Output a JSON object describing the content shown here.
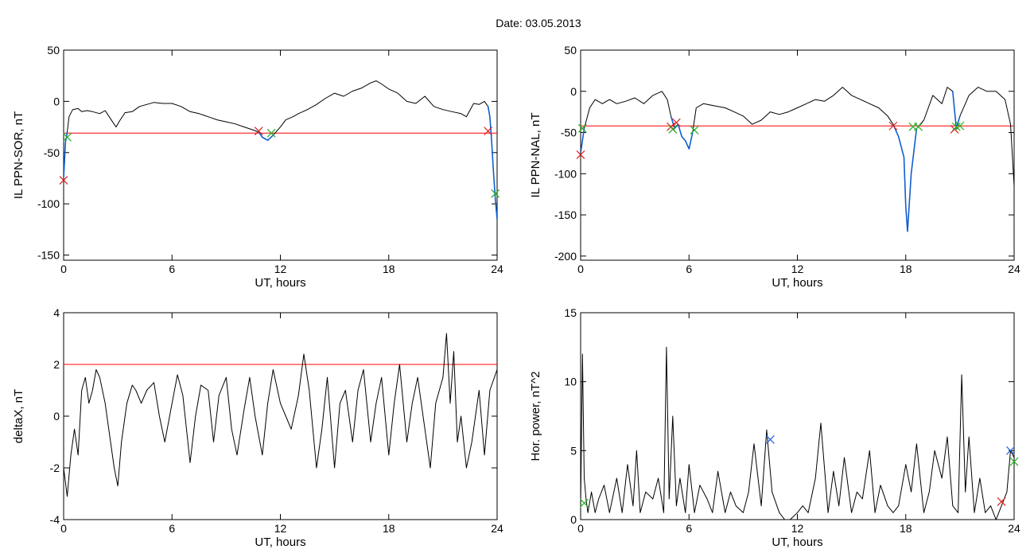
{
  "figure": {
    "title": "Date:  03.05.2013"
  },
  "colors": {
    "series": "#000000",
    "segment": "#1060d0",
    "threshold": "#ff0000",
    "marker_red": "#dd2020",
    "marker_green": "#20b020",
    "marker_blue": "#2060e0"
  },
  "chart_data": [
    {
      "type": "line",
      "title": "",
      "xlabel": "UT, hours",
      "ylabel": "IL PPN-SOR, nT",
      "xlim": [
        0,
        24
      ],
      "ylim": [
        -155,
        50
      ],
      "xticks": [
        0,
        6,
        12,
        18,
        24
      ],
      "yticks": [
        50,
        0,
        -50,
        -100,
        -150
      ],
      "threshold": -31,
      "series": [
        {
          "role": "main",
          "x": [
            0,
            0.1,
            0.2,
            0.3,
            0.5,
            0.8,
            1.0,
            1.3,
            1.6,
            2.0,
            2.3,
            2.6,
            2.9,
            3.1,
            3.4,
            3.8,
            4.2,
            4.6,
            5.0,
            5.5,
            6.0,
            6.5,
            7.0,
            7.5,
            8.0,
            8.5,
            9.0,
            9.5,
            10.0,
            10.5,
            10.8,
            11.0,
            11.3,
            11.6,
            12.0,
            12.3,
            12.7,
            13.0,
            13.5,
            14.0,
            14.5,
            15.0,
            15.5,
            16.0,
            16.5,
            17.0,
            17.3,
            17.6,
            18.0,
            18.5,
            19.0,
            19.5,
            20.0,
            20.5,
            21.0,
            21.5,
            22.0,
            22.3,
            22.7,
            23.0,
            23.3,
            23.5,
            23.6,
            23.7,
            23.8,
            23.9,
            24.0
          ],
          "y": [
            -75,
            -40,
            -30,
            -15,
            -8,
            -7,
            -10,
            -9,
            -10,
            -12,
            -9,
            -17,
            -25,
            -19,
            -11,
            -10,
            -5,
            -3,
            -1,
            -2,
            -2,
            -5,
            -10,
            -12,
            -15,
            -18,
            -20,
            -22,
            -25,
            -28,
            -30,
            -35,
            -38,
            -33,
            -25,
            -18,
            -15,
            -12,
            -8,
            -3,
            3,
            8,
            5,
            10,
            13,
            18,
            20,
            17,
            12,
            8,
            0,
            -2,
            5,
            -5,
            -8,
            -10,
            -12,
            -15,
            -2,
            -3,
            0,
            -5,
            -15,
            -40,
            -70,
            -95,
            -115
          ]
        },
        {
          "role": "segment",
          "x": [
            10.8,
            11.0,
            11.3,
            11.6
          ],
          "y": [
            -30,
            -35,
            -38,
            -33
          ]
        },
        {
          "role": "segment",
          "x": [
            23.5,
            23.6,
            23.7,
            23.8,
            23.9,
            24.0
          ],
          "y": [
            -5,
            -15,
            -40,
            -70,
            -95,
            -115
          ]
        },
        {
          "role": "segment",
          "x": [
            0,
            0.1,
            0.2
          ],
          "y": [
            -75,
            -40,
            -30
          ]
        }
      ],
      "markers": [
        {
          "x": 0.0,
          "y": -77,
          "color": "red"
        },
        {
          "x": 0.2,
          "y": -35,
          "color": "green"
        },
        {
          "x": 10.8,
          "y": -29,
          "color": "red"
        },
        {
          "x": 11.5,
          "y": -31,
          "color": "green"
        },
        {
          "x": 23.5,
          "y": -29,
          "color": "red"
        },
        {
          "x": 23.9,
          "y": -90,
          "color": "green"
        }
      ]
    },
    {
      "type": "line",
      "title": "",
      "xlabel": "UT, hours",
      "ylabel": "IL PPN-NAL, nT",
      "xlim": [
        0,
        24
      ],
      "ylim": [
        -205,
        50
      ],
      "xticks": [
        0,
        6,
        12,
        18,
        24
      ],
      "yticks": [
        50,
        0,
        -50,
        -100,
        -150,
        -200
      ],
      "threshold": -42,
      "series": [
        {
          "role": "main",
          "x": [
            0,
            0.2,
            0.5,
            0.8,
            1.2,
            1.6,
            2.0,
            2.5,
            3.0,
            3.5,
            4.0,
            4.5,
            4.8,
            5.0,
            5.2,
            5.4,
            5.6,
            5.8,
            6.0,
            6.2,
            6.4,
            6.8,
            7.5,
            8.0,
            8.5,
            9.0,
            9.5,
            10.0,
            10.5,
            11.0,
            11.5,
            12.0,
            12.5,
            13.0,
            13.5,
            14.0,
            14.5,
            15.0,
            15.5,
            16.0,
            16.5,
            17.0,
            17.3,
            17.6,
            17.9,
            18.0,
            18.1,
            18.3,
            18.6,
            19.0,
            19.5,
            20.0,
            20.3,
            20.6,
            20.8,
            21.0,
            21.5,
            22.0,
            22.5,
            23.0,
            23.5,
            23.8,
            24.0
          ],
          "y": [
            -75,
            -45,
            -20,
            -10,
            -15,
            -10,
            -15,
            -12,
            -8,
            -15,
            -5,
            0,
            -10,
            -30,
            -45,
            -40,
            -55,
            -60,
            -70,
            -50,
            -20,
            -15,
            -18,
            -20,
            -25,
            -30,
            -40,
            -35,
            -25,
            -28,
            -25,
            -20,
            -15,
            -10,
            -12,
            -5,
            5,
            -5,
            -10,
            -15,
            -20,
            -30,
            -40,
            -55,
            -80,
            -140,
            -170,
            -100,
            -45,
            -35,
            -5,
            -15,
            5,
            0,
            -45,
            -30,
            -5,
            5,
            0,
            0,
            -10,
            -40,
            -115
          ]
        },
        {
          "role": "segment",
          "x": [
            5.0,
            5.2,
            5.4,
            5.6,
            5.8,
            6.0,
            6.2
          ],
          "y": [
            -30,
            -45,
            -40,
            -55,
            -60,
            -70,
            -50
          ]
        },
        {
          "role": "segment",
          "x": [
            17.3,
            17.6,
            17.9,
            18.0,
            18.1,
            18.3,
            18.6
          ],
          "y": [
            -40,
            -55,
            -80,
            -140,
            -170,
            -100,
            -45
          ]
        },
        {
          "role": "segment",
          "x": [
            20.6,
            20.8,
            21.0
          ],
          "y": [
            0,
            -45,
            -30
          ]
        },
        {
          "role": "segment",
          "x": [
            0,
            0.2
          ],
          "y": [
            -75,
            -45
          ]
        }
      ],
      "markers": [
        {
          "x": 0.0,
          "y": -77,
          "color": "red"
        },
        {
          "x": 0.1,
          "y": -45,
          "color": "green"
        },
        {
          "x": 5.0,
          "y": -43,
          "color": "red"
        },
        {
          "x": 5.3,
          "y": -38,
          "color": "red"
        },
        {
          "x": 5.1,
          "y": -46,
          "color": "green"
        },
        {
          "x": 6.3,
          "y": -47,
          "color": "green"
        },
        {
          "x": 17.3,
          "y": -42,
          "color": "red"
        },
        {
          "x": 18.4,
          "y": -43,
          "color": "green"
        },
        {
          "x": 18.7,
          "y": -43,
          "color": "green"
        },
        {
          "x": 20.7,
          "y": -46,
          "color": "red"
        },
        {
          "x": 20.8,
          "y": -43,
          "color": "green"
        },
        {
          "x": 21.0,
          "y": -42,
          "color": "green"
        }
      ]
    },
    {
      "type": "line",
      "title": "",
      "xlabel": "UT, hours",
      "ylabel": "deltaX, nT",
      "xlim": [
        0,
        24
      ],
      "ylim": [
        -4,
        4
      ],
      "xticks": [
        0,
        6,
        12,
        18,
        24
      ],
      "yticks": [
        4,
        2,
        0,
        -2,
        -4
      ],
      "threshold": 2,
      "series": [
        {
          "role": "main",
          "x": [
            0,
            0.2,
            0.4,
            0.6,
            0.8,
            1.0,
            1.2,
            1.4,
            1.6,
            1.8,
            2.0,
            2.3,
            2.6,
            2.8,
            3.0,
            3.2,
            3.5,
            3.8,
            4.0,
            4.3,
            4.6,
            5.0,
            5.3,
            5.6,
            6.0,
            6.3,
            6.6,
            7.0,
            7.3,
            7.6,
            8.0,
            8.3,
            8.6,
            9.0,
            9.3,
            9.6,
            10.0,
            10.3,
            10.6,
            11.0,
            11.3,
            11.6,
            12.0,
            12.3,
            12.6,
            13.0,
            13.3,
            13.6,
            14.0,
            14.3,
            14.6,
            15.0,
            15.3,
            15.6,
            16.0,
            16.3,
            16.6,
            17.0,
            17.3,
            17.6,
            18.0,
            18.3,
            18.6,
            19.0,
            19.3,
            19.6,
            20.0,
            20.3,
            20.6,
            21.0,
            21.2,
            21.4,
            21.6,
            21.8,
            22.0,
            22.3,
            22.6,
            23.0,
            23.3,
            23.6,
            24.0
          ],
          "y": [
            -2.0,
            -3.1,
            -1.5,
            -0.5,
            -1.5,
            1.0,
            1.5,
            0.5,
            1.0,
            1.8,
            1.5,
            0.5,
            -1.0,
            -2.0,
            -2.7,
            -1.0,
            0.5,
            1.2,
            1.0,
            0.5,
            1.0,
            1.3,
            0.0,
            -1.0,
            0.5,
            1.6,
            0.8,
            -1.8,
            0.0,
            1.2,
            1.0,
            -1.0,
            0.8,
            1.5,
            -0.5,
            -1.5,
            0.3,
            1.5,
            0.0,
            -1.5,
            0.5,
            1.8,
            0.5,
            0.0,
            -0.5,
            0.8,
            2.4,
            1.0,
            -2.0,
            -0.5,
            1.5,
            -2.0,
            0.5,
            1.0,
            -1.0,
            1.0,
            1.8,
            -1.0,
            0.5,
            1.5,
            -1.5,
            0.5,
            2.0,
            -1.0,
            0.5,
            1.5,
            -0.5,
            -2.0,
            0.5,
            1.5,
            3.2,
            0.5,
            2.5,
            -1.0,
            0.0,
            -2.0,
            -1.0,
            1.0,
            -1.5,
            1.0,
            1.8
          ]
        }
      ],
      "markers": []
    },
    {
      "type": "line",
      "title": "",
      "xlabel": "UT, hours",
      "ylabel": "Hor. power, nT^2",
      "xlim": [
        0,
        24
      ],
      "ylim": [
        0,
        15
      ],
      "xticks": [
        0,
        6,
        12,
        18,
        24
      ],
      "yticks": [
        15,
        10,
        5,
        0
      ],
      "series": [
        {
          "role": "main",
          "x": [
            0,
            0.1,
            0.2,
            0.3,
            0.4,
            0.6,
            0.8,
            1.0,
            1.3,
            1.6,
            2.0,
            2.3,
            2.6,
            2.9,
            3.1,
            3.3,
            3.6,
            4.0,
            4.3,
            4.6,
            4.75,
            4.9,
            5.1,
            5.3,
            5.5,
            5.8,
            6.0,
            6.3,
            6.6,
            7.0,
            7.3,
            7.6,
            8.0,
            8.3,
            8.6,
            9.0,
            9.3,
            9.6,
            10.0,
            10.3,
            10.6,
            11.0,
            11.3,
            11.6,
            12.0,
            12.3,
            12.6,
            13.0,
            13.3,
            13.7,
            14.0,
            14.3,
            14.6,
            15.0,
            15.3,
            15.6,
            16.0,
            16.3,
            16.6,
            17.0,
            17.3,
            17.6,
            18.0,
            18.3,
            18.6,
            19.0,
            19.3,
            19.6,
            20.0,
            20.3,
            20.6,
            20.9,
            21.1,
            21.3,
            21.5,
            21.8,
            22.1,
            22.4,
            22.7,
            23.0,
            23.3,
            23.6,
            23.8,
            24.0
          ],
          "y": [
            1.0,
            12.0,
            3.0,
            1.5,
            0.5,
            2.0,
            0.5,
            1.5,
            2.5,
            0.5,
            3.0,
            0.5,
            4.0,
            1.0,
            5.0,
            0.5,
            2.0,
            1.5,
            3.0,
            0.5,
            12.5,
            1.5,
            7.5,
            1.0,
            3.0,
            0.5,
            4.0,
            0.5,
            2.5,
            1.5,
            0.5,
            3.5,
            0.5,
            2.0,
            1.0,
            0.5,
            2.0,
            5.5,
            1.0,
            6.5,
            2.0,
            0.5,
            0.0,
            0.0,
            0.5,
            1.0,
            0.5,
            3.0,
            7.0,
            0.5,
            3.5,
            1.0,
            4.5,
            0.5,
            2.0,
            1.5,
            5.0,
            0.5,
            2.5,
            1.0,
            0.5,
            1.0,
            4.0,
            2.0,
            5.5,
            0.5,
            2.0,
            5.0,
            3.0,
            6.0,
            1.0,
            0.5,
            10.5,
            2.0,
            6.0,
            0.5,
            3.0,
            0.5,
            1.0,
            0.0,
            1.0,
            2.0,
            5.0,
            4.5
          ]
        }
      ],
      "markers": [
        {
          "x": 10.5,
          "y": 5.8,
          "color": "blue"
        },
        {
          "x": 23.3,
          "y": 1.3,
          "color": "red"
        },
        {
          "x": 23.8,
          "y": 5.0,
          "color": "blue"
        },
        {
          "x": 24.0,
          "y": 4.2,
          "color": "green"
        },
        {
          "x": 0.2,
          "y": 1.2,
          "color": "green"
        }
      ]
    }
  ]
}
